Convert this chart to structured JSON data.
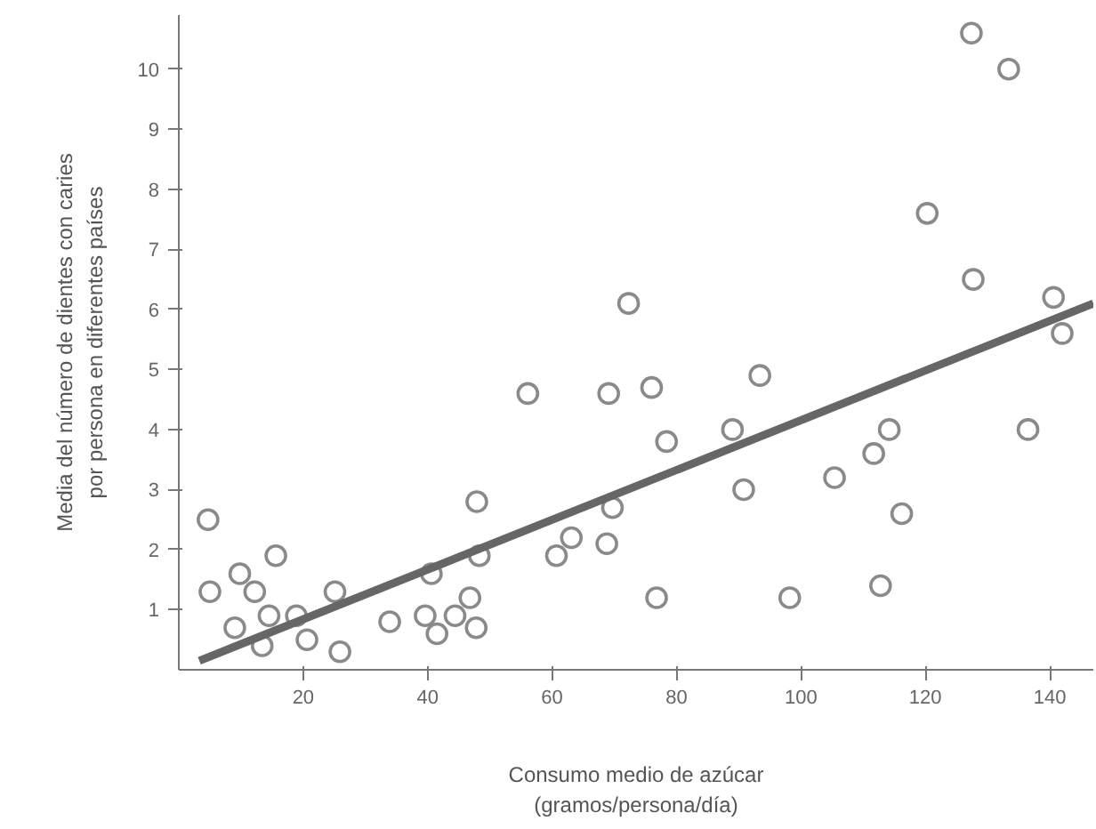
{
  "chart_data": {
    "type": "scatter",
    "xlabel": "Consumo medio de azúcar\n(gramos/persona/día)",
    "ylabel": "Media del número de dientes con caries\npor persona en diferentes países",
    "xlim": [
      0,
      147
    ],
    "ylim": [
      0,
      10.9
    ],
    "xticks": [
      20,
      40,
      60,
      80,
      100,
      120,
      140
    ],
    "yticks": [
      1,
      2,
      3,
      4,
      5,
      6,
      7,
      8,
      9,
      10
    ],
    "grid": false,
    "marker": "circle",
    "series": [
      {
        "color": "#8a8a8a",
        "x": [
          4.7,
          5.0,
          9.0,
          9.8,
          12.2,
          13.4,
          14.5,
          15.6,
          18.9,
          20.6,
          25.1,
          25.9,
          33.9,
          39.6,
          40.6,
          41.5,
          44.4,
          46.8,
          47.8,
          47.9,
          48.3,
          56.1,
          60.7,
          63.1,
          68.8,
          69.1,
          69.7,
          72.3,
          76.0,
          76.8,
          78.4,
          89.0,
          90.8,
          93.4,
          98.2,
          105.4,
          111.7,
          112.8,
          114.2,
          116.2,
          120.3,
          127.4,
          127.7,
          133.4,
          136.5,
          140.6,
          142.0
        ],
        "values": [
          2.5,
          1.3,
          0.7,
          1.6,
          1.3,
          0.4,
          0.9,
          1.9,
          0.9,
          0.5,
          1.3,
          0.3,
          0.8,
          0.9,
          1.6,
          0.6,
          0.9,
          1.2,
          0.7,
          2.8,
          1.9,
          4.6,
          1.9,
          2.2,
          2.1,
          4.6,
          2.7,
          6.1,
          4.7,
          1.2,
          3.8,
          4.0,
          3.0,
          4.9,
          1.2,
          3.2,
          3.6,
          1.4,
          4.0,
          2.6,
          7.6,
          10.6,
          6.5,
          10.0,
          4.0,
          6.2,
          5.6
        ]
      },
      {
        "type": "line",
        "color": "#666666",
        "marker": "none",
        "line_style": "solid",
        "x": [
          3.3,
          147
        ],
        "values": [
          0.15,
          6.1
        ]
      }
    ]
  }
}
